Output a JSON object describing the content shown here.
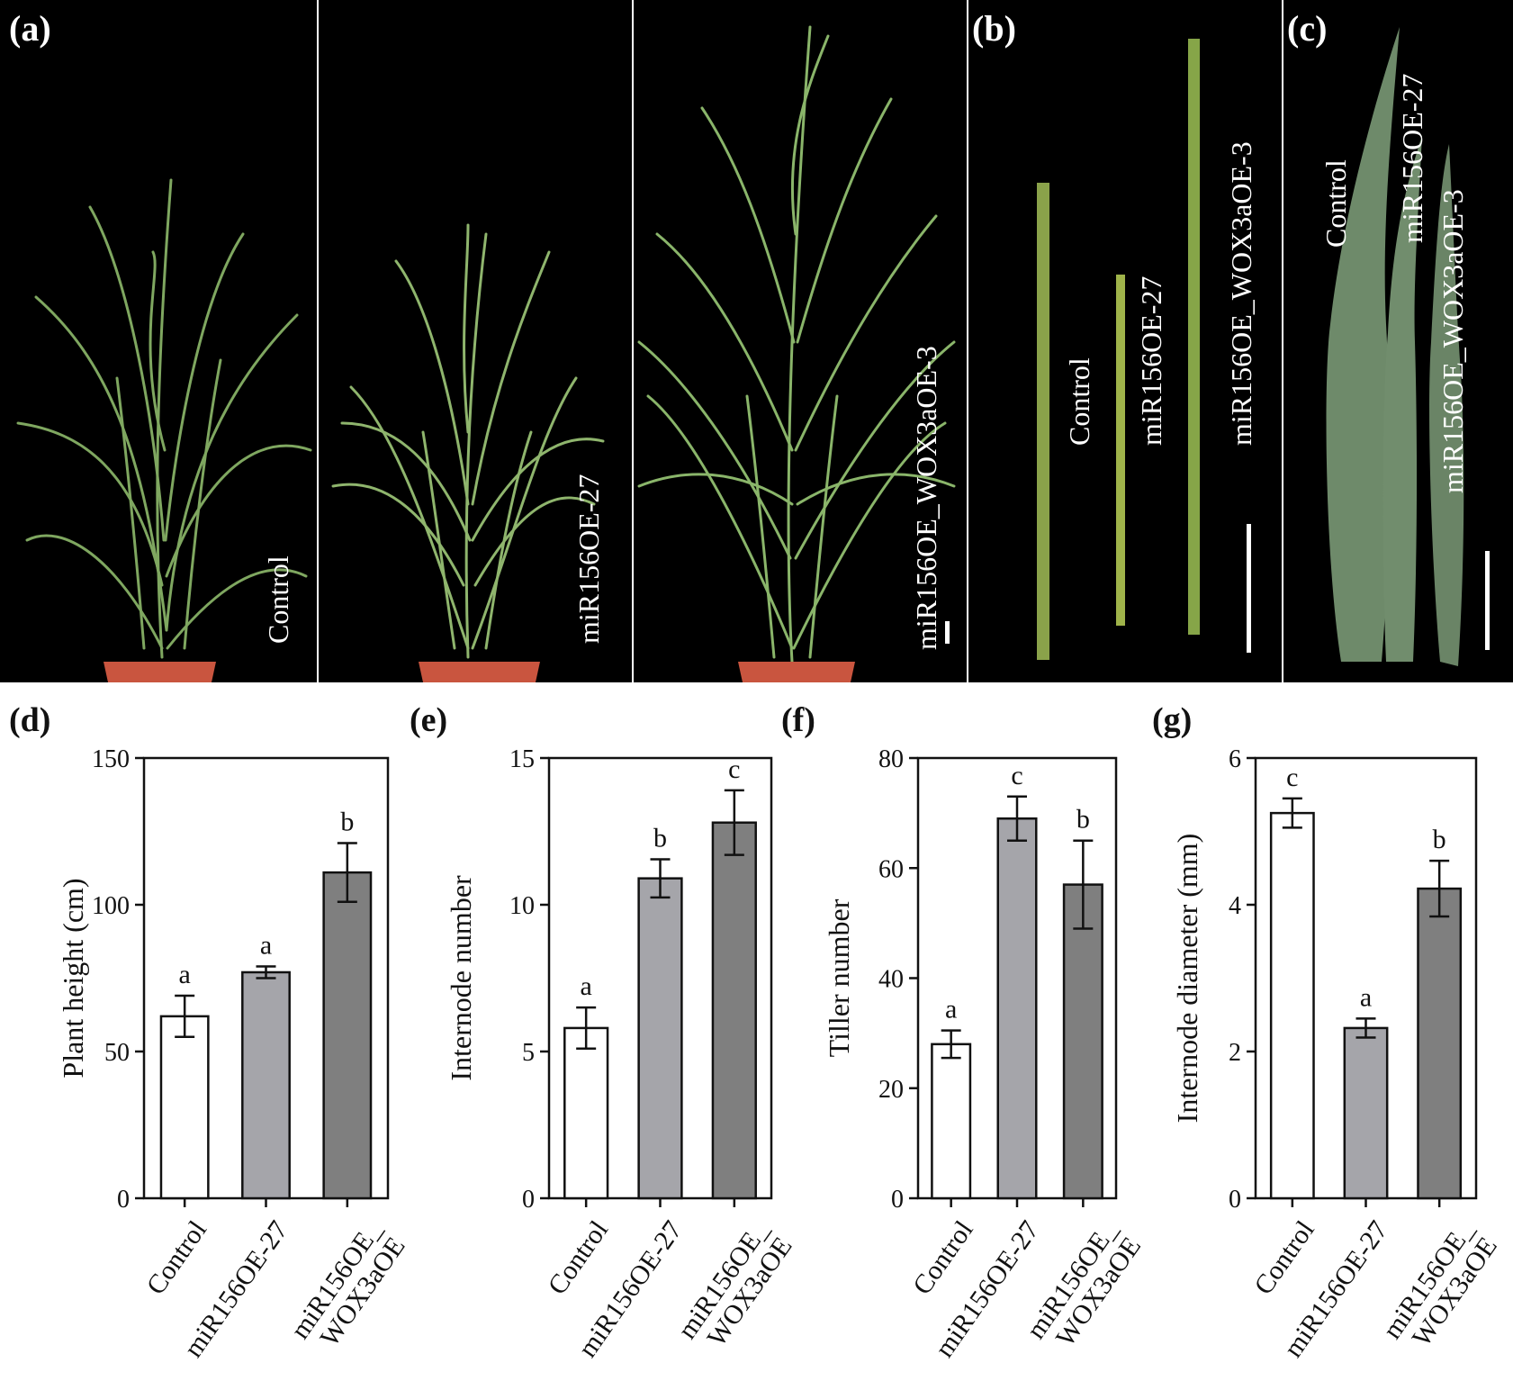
{
  "photo_panels": [
    {
      "letter": "(a)",
      "labels": [
        "Control",
        "miR156OE-27",
        "miR156OE_WOX3aOE-3"
      ]
    },
    {
      "letter": "(b)",
      "labels": [
        "Control",
        "miR156OE-27",
        "miR156OE_WOX3aOE-3"
      ]
    },
    {
      "letter": "(c)",
      "labels": [
        "Control",
        "miR156OE-27",
        "miR156OE_WOX3aOE-3"
      ]
    }
  ],
  "colors": {
    "photo_background": "#000000",
    "plant_green": "#7fa760",
    "stem_green": "#8aa24a",
    "leaf_green": "#6e8a6a",
    "pot": "#c9553f",
    "bar_control": "#ffffff",
    "bar_mir156": "#a5a5aa",
    "bar_wox": "#7f7f7f"
  },
  "chart_data": [
    {
      "panel": "(d)",
      "type": "bar",
      "categories": [
        "Control",
        "miR156OE-27",
        "miR156OE_\nWOX3aOE"
      ],
      "values": [
        62,
        77,
        111
      ],
      "errors": [
        7,
        2,
        10
      ],
      "significance": [
        "a",
        "a",
        "b"
      ],
      "ylabel": "Plant height (cm)",
      "ylim": [
        0,
        150
      ],
      "yticks": [
        0,
        50,
        100,
        150
      ]
    },
    {
      "panel": "(e)",
      "type": "bar",
      "categories": [
        "Control",
        "miR156OE-27",
        "miR156OE_\nWOX3aOE"
      ],
      "values": [
        5.8,
        10.9,
        12.8
      ],
      "errors": [
        0.7,
        0.65,
        1.1
      ],
      "significance": [
        "a",
        "b",
        "c"
      ],
      "ylabel": "Internode number",
      "ylim": [
        0,
        15
      ],
      "yticks": [
        0,
        5,
        10,
        15
      ]
    },
    {
      "panel": "(f)",
      "type": "bar",
      "categories": [
        "Control",
        "miR156OE-27",
        "miR156OE_\nWOX3aOE"
      ],
      "values": [
        28,
        69,
        57
      ],
      "errors": [
        2.5,
        4,
        8
      ],
      "significance": [
        "a",
        "c",
        "b"
      ],
      "ylabel": "Tiller number",
      "ylim": [
        0,
        80
      ],
      "yticks": [
        0,
        20,
        40,
        60,
        80
      ]
    },
    {
      "panel": "(g)",
      "type": "bar",
      "categories": [
        "Control",
        "miR156OE-27",
        "miR156OE_\nWOX3aOE"
      ],
      "values": [
        5.25,
        2.32,
        4.22
      ],
      "errors": [
        0.2,
        0.13,
        0.38
      ],
      "significance": [
        "c",
        "a",
        "b"
      ],
      "ylabel": "Internode diameter (mm)",
      "ylim": [
        0,
        6
      ],
      "yticks": [
        0,
        2,
        4,
        6
      ]
    }
  ]
}
